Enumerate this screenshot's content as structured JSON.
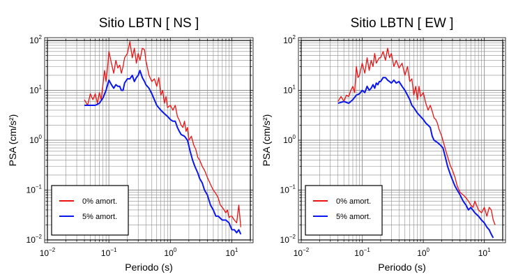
{
  "chart_data": [
    {
      "type": "line",
      "title": "Sitio LBTN [ NS ]",
      "xlabel": "Periodo (s)",
      "ylabel": "PSA (cm/s²)",
      "xscale": "log",
      "yscale": "log",
      "xlim": [
        0.01,
        20
      ],
      "ylim": [
        0.01,
        100
      ],
      "x_ticks": [
        "10^-2",
        "10^-1",
        "10^0",
        "10^1"
      ],
      "y_ticks": [
        "10^-2",
        "10^-1",
        "10^0",
        "10^1",
        "10^2"
      ],
      "grid": true,
      "legend_position": "bottom-left",
      "series": [
        {
          "name": "0% amort.",
          "color": "#ee1111",
          "x": [
            0.04,
            0.045,
            0.05,
            0.055,
            0.06,
            0.065,
            0.07,
            0.075,
            0.08,
            0.085,
            0.09,
            0.095,
            0.1,
            0.11,
            0.12,
            0.13,
            0.14,
            0.15,
            0.16,
            0.17,
            0.18,
            0.2,
            0.22,
            0.24,
            0.26,
            0.28,
            0.3,
            0.32,
            0.35,
            0.38,
            0.4,
            0.45,
            0.5,
            0.55,
            0.6,
            0.65,
            0.7,
            0.75,
            0.8,
            0.85,
            0.9,
            1.0,
            1.1,
            1.2,
            1.3,
            1.4,
            1.5,
            1.6,
            1.7,
            1.8,
            1.9,
            2.0,
            2.2,
            2.4,
            2.6,
            2.8,
            3.0,
            3.3,
            3.6,
            4.0,
            4.5,
            5.0,
            5.5,
            6.0,
            6.5,
            7.0,
            7.5,
            8.0,
            8.5,
            9.0,
            9.5,
            10,
            11,
            12,
            13,
            14
          ],
          "y": [
            6.5,
            5.0,
            8.5,
            6.5,
            8.5,
            5.5,
            9.0,
            6.5,
            13,
            25,
            15,
            28,
            60,
            35,
            22,
            40,
            28,
            32,
            22,
            30,
            45,
            55,
            95,
            45,
            70,
            35,
            55,
            40,
            70,
            65,
            40,
            20,
            15,
            17,
            12,
            18,
            8,
            10,
            5.5,
            7.5,
            4.5,
            5.0,
            4.0,
            5.0,
            3.0,
            2.5,
            2.0,
            1.8,
            2.4,
            1.5,
            1.8,
            1.0,
            1.2,
            0.8,
            0.65,
            0.45,
            0.4,
            0.3,
            0.25,
            0.18,
            0.13,
            0.1,
            0.085,
            0.07,
            0.05,
            0.045,
            0.04,
            0.035,
            0.04,
            0.028,
            0.03,
            0.03,
            0.025,
            0.022,
            0.05,
            0.018
          ]
        },
        {
          "name": "5% amort.",
          "color": "#0a16f0",
          "x": [
            0.04,
            0.05,
            0.06,
            0.07,
            0.08,
            0.09,
            0.1,
            0.11,
            0.12,
            0.13,
            0.14,
            0.15,
            0.16,
            0.17,
            0.18,
            0.2,
            0.22,
            0.24,
            0.26,
            0.28,
            0.3,
            0.32,
            0.35,
            0.38,
            0.4,
            0.45,
            0.5,
            0.55,
            0.6,
            0.7,
            0.8,
            0.9,
            1.0,
            1.1,
            1.2,
            1.3,
            1.4,
            1.5,
            1.7,
            1.9,
            2.1,
            2.3,
            2.5,
            2.8,
            3.0,
            3.3,
            3.6,
            4.0,
            4.5,
            5.0,
            5.5,
            6.0,
            7.0,
            8.0,
            9.0,
            10,
            11,
            12,
            13,
            14
          ],
          "y": [
            5.0,
            5.0,
            5.0,
            5.5,
            7.0,
            10,
            16,
            13,
            11,
            13,
            12,
            12,
            10,
            10,
            14,
            17,
            17,
            20,
            15,
            18,
            20,
            25,
            18,
            15,
            13,
            11,
            8.5,
            6.5,
            5.0,
            4.0,
            3.4,
            3.0,
            2.6,
            2.4,
            2.4,
            1.8,
            1.5,
            1.3,
            1.2,
            1.0,
            0.6,
            0.4,
            0.3,
            0.22,
            0.17,
            0.14,
            0.1,
            0.08,
            0.05,
            0.04,
            0.03,
            0.03,
            0.025,
            0.025,
            0.022,
            0.016,
            0.016,
            0.014,
            0.016,
            0.013
          ]
        }
      ]
    },
    {
      "type": "line",
      "title": "Sitio LBTN [ EW ]",
      "xlabel": "Periodo (s)",
      "ylabel": "PSA (cm/s²)",
      "xscale": "log",
      "yscale": "log",
      "xlim": [
        0.01,
        20
      ],
      "ylim": [
        0.01,
        100
      ],
      "x_ticks": [
        "10^-2",
        "10^-1",
        "10^0",
        "10^1"
      ],
      "y_ticks": [
        "10^-2",
        "10^-1",
        "10^0",
        "10^1",
        "10^2"
      ],
      "grid": true,
      "legend_position": "bottom-left",
      "series": [
        {
          "name": "0% amort.",
          "color": "#ee1111",
          "x": [
            0.04,
            0.045,
            0.05,
            0.055,
            0.06,
            0.065,
            0.07,
            0.075,
            0.08,
            0.085,
            0.09,
            0.1,
            0.11,
            0.12,
            0.13,
            0.14,
            0.15,
            0.16,
            0.17,
            0.18,
            0.19,
            0.2,
            0.22,
            0.24,
            0.26,
            0.28,
            0.3,
            0.33,
            0.36,
            0.4,
            0.45,
            0.5,
            0.55,
            0.6,
            0.65,
            0.7,
            0.75,
            0.8,
            0.85,
            0.9,
            1.0,
            1.1,
            1.2,
            1.3,
            1.4,
            1.5,
            1.6,
            1.7,
            1.8,
            2.0,
            2.2,
            2.4,
            2.6,
            2.8,
            3.0,
            3.3,
            3.6,
            4.0,
            4.5,
            5.0,
            5.5,
            6.0,
            6.5,
            7.0,
            8.0,
            9.0,
            10,
            11,
            12,
            13,
            14,
            15
          ],
          "y": [
            6.0,
            7.5,
            6.0,
            8.0,
            7.5,
            10,
            12,
            9.0,
            30,
            18,
            20,
            35,
            22,
            45,
            25,
            40,
            30,
            55,
            35,
            40,
            45,
            45,
            60,
            40,
            70,
            45,
            55,
            30,
            40,
            28,
            35,
            20,
            30,
            15,
            17,
            8,
            12,
            6.5,
            12,
            7.5,
            9.0,
            5.5,
            4.0,
            5.0,
            3.8,
            2.8,
            2.6,
            2.2,
            1.7,
            1.2,
            0.8,
            0.55,
            0.4,
            0.3,
            0.25,
            0.18,
            0.12,
            0.09,
            0.08,
            0.07,
            0.06,
            0.05,
            0.045,
            0.06,
            0.04,
            0.035,
            0.045,
            0.03,
            0.045,
            0.04,
            0.025,
            0.02
          ]
        },
        {
          "name": "5% amort.",
          "color": "#0a16f0",
          "x": [
            0.04,
            0.05,
            0.06,
            0.07,
            0.08,
            0.09,
            0.1,
            0.11,
            0.12,
            0.13,
            0.14,
            0.15,
            0.16,
            0.17,
            0.18,
            0.19,
            0.2,
            0.22,
            0.24,
            0.26,
            0.28,
            0.3,
            0.33,
            0.36,
            0.4,
            0.45,
            0.5,
            0.55,
            0.6,
            0.65,
            0.7,
            0.8,
            0.9,
            1.0,
            1.1,
            1.2,
            1.3,
            1.4,
            1.5,
            1.7,
            1.9,
            2.1,
            2.3,
            2.5,
            2.8,
            3.0,
            3.3,
            3.6,
            4.0,
            4.5,
            5.0,
            5.5,
            6.0,
            7.0,
            8.0,
            9.0,
            10,
            11,
            12,
            13,
            14
          ],
          "y": [
            5.5,
            6.0,
            5.5,
            6.5,
            8.0,
            8.5,
            10,
            9.0,
            12,
            10,
            11,
            13,
            11,
            14,
            13,
            15,
            15,
            18,
            18,
            16,
            15,
            14,
            16,
            14,
            15,
            12,
            10,
            8.0,
            6.5,
            5.0,
            4.5,
            3.5,
            3.0,
            2.6,
            2.2,
            2.0,
            1.8,
            1.2,
            1.0,
            0.9,
            0.8,
            0.7,
            0.45,
            0.3,
            0.2,
            0.16,
            0.12,
            0.1,
            0.08,
            0.06,
            0.05,
            0.04,
            0.045,
            0.035,
            0.03,
            0.025,
            0.022,
            0.018,
            0.016,
            0.013,
            0.011
          ]
        }
      ]
    }
  ]
}
